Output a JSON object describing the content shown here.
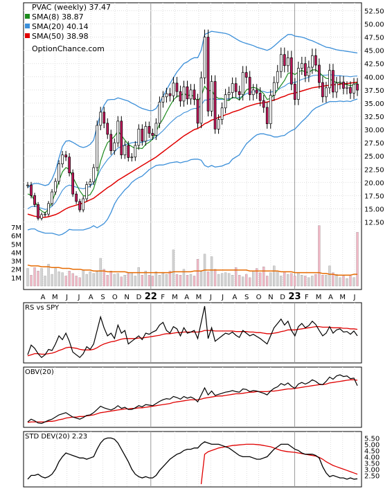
{
  "chart_data": {
    "type": "line",
    "title": "PVAC (weekly) 37.47",
    "watermark": "OptionChance.com",
    "legend_position": "top-left",
    "x_labels": [
      "A",
      "M",
      "J",
      "J",
      "A",
      "S",
      "O",
      "N",
      "D",
      "22",
      "F",
      "M",
      "A",
      "M",
      "J",
      "J",
      "A",
      "S",
      "O",
      "N",
      "D",
      "23",
      "F",
      "M",
      "A",
      "M",
      "J"
    ],
    "year_labels": [
      "22",
      "23"
    ],
    "price_panel": {
      "ylim": [
        11.0,
        54.0
      ],
      "ticks": [
        "52.50",
        "50.00",
        "47.50",
        "45.00",
        "42.50",
        "40.00",
        "37.50",
        "35.00",
        "32.50",
        "30.00",
        "27.50",
        "25.00",
        "22.50",
        "20.00",
        "17.50",
        "15.00",
        "12.50"
      ],
      "legend": [
        {
          "label": "SMA(8) 38.87",
          "color": "#1e8b1e"
        },
        {
          "label": "SMA(20) 40.14",
          "color": "#3b8fd9"
        },
        {
          "label": "SMA(50) 38.98",
          "color": "#e00000"
        }
      ],
      "close": [
        19.5,
        17.5,
        15.8,
        13.2,
        13.9,
        14.0,
        16.0,
        18.2,
        20.2,
        23.5,
        25.2,
        24.8,
        21.8,
        17.8,
        16.4,
        14.8,
        16.9,
        19.6,
        20.1,
        22.8,
        30.8,
        33.3,
        31.2,
        29.1,
        26.0,
        27.5,
        31.6,
        25.2,
        27.0,
        24.7,
        24.8,
        27.0,
        30.1,
        27.8,
        30.6,
        29.3,
        28.9,
        31.2,
        35.2,
        36.2,
        36.8,
        36.4,
        38.8,
        37.2,
        35.4,
        38.1,
        35.8,
        37.5,
        35.7,
        31.2,
        39.8,
        47.5,
        33.5,
        39.1,
        30.1,
        31.9,
        34.1,
        36.6,
        37.0,
        38.7,
        37.2,
        36.6,
        40.8,
        39.9,
        36.6,
        37.5,
        36.9,
        35.5,
        34.2,
        31.1,
        36.5,
        38.9,
        41.0,
        44.2,
        42.1,
        43.6,
        38.6,
        35.7,
        41.6,
        42.5,
        40.2,
        41.8,
        44.0,
        42.2,
        38.9,
        36.2,
        37.9,
        41.2,
        37.1,
        38.8,
        39.0,
        37.8,
        38.0,
        36.9,
        38.6,
        37.47
      ],
      "sma8": [
        17.8,
        17.6,
        16.6,
        15.2,
        14.6,
        14.2,
        15.0,
        16.3,
        18.1,
        20.3,
        22.0,
        22.8,
        22.5,
        21.0,
        19.7,
        18.4,
        17.5,
        17.4,
        17.7,
        18.8,
        21.1,
        24.0,
        26.0,
        27.5,
        28.1,
        28.7,
        29.7,
        28.9,
        28.0,
        27.2,
        26.8,
        26.4,
        26.5,
        26.4,
        27.2,
        27.6,
        28.2,
        29.6,
        31.0,
        32.0,
        33.3,
        34.5,
        35.6,
        36.3,
        36.4,
        36.9,
        36.4,
        36.6,
        36.2,
        35.3,
        36.3,
        38.2,
        37.3,
        37.5,
        36.3,
        35.9,
        35.9,
        35.6,
        35.5,
        36.1,
        36.0,
        35.6,
        36.4,
        37.5,
        37.8,
        38.0,
        37.8,
        37.4,
        36.8,
        35.7,
        35.9,
        36.6,
        37.5,
        38.4,
        39.3,
        40.6,
        40.8,
        40.4,
        40.9,
        41.2,
        40.9,
        40.8,
        41.3,
        41.3,
        40.8,
        40.2,
        39.7,
        39.6,
        39.2,
        38.9,
        38.9,
        38.6,
        38.5,
        38.3,
        38.5,
        38.87
      ],
      "sma20": [
        15.0,
        15.4,
        15.5,
        15.3,
        15.1,
        14.9,
        15.0,
        15.5,
        16.2,
        17.3,
        18.5,
        19.2,
        19.5,
        19.3,
        19.1,
        18.9,
        18.8,
        19.0,
        19.3,
        19.9,
        21.0,
        22.4,
        23.4,
        24.3,
        25.0,
        25.8,
        26.5,
        26.8,
        27.1,
        27.3,
        27.5,
        27.6,
        27.6,
        27.6,
        27.8,
        28.0,
        28.2,
        28.6,
        29.2,
        29.8,
        30.5,
        31.2,
        31.8,
        32.4,
        32.7,
        33.2,
        33.4,
        33.8,
        34.0,
        34.0,
        34.6,
        35.6,
        35.6,
        35.9,
        35.7,
        35.7,
        35.7,
        35.8,
        35.8,
        36.0,
        36.0,
        36.0,
        36.4,
        36.8,
        37.0,
        37.2,
        37.3,
        37.3,
        37.2,
        37.0,
        37.1,
        37.2,
        37.5,
        37.9,
        38.2,
        38.7,
        38.9,
        38.9,
        39.2,
        39.5,
        39.7,
        39.9,
        40.2,
        40.3,
        40.3,
        40.3,
        40.3,
        40.4,
        40.3,
        40.2,
        40.2,
        40.1,
        40.1,
        40.0,
        40.1,
        40.14
      ],
      "sma50": [
        14.0,
        13.8,
        13.6,
        13.5,
        13.4,
        13.4,
        13.5,
        13.7,
        13.9,
        14.2,
        14.6,
        15.0,
        15.3,
        15.5,
        15.7,
        15.9,
        16.1,
        16.4,
        16.7,
        17.0,
        17.5,
        18.0,
        18.5,
        19.0,
        19.4,
        19.9,
        20.4,
        20.8,
        21.2,
        21.6,
        22.0,
        22.4,
        22.8,
        23.2,
        23.6,
        24.0,
        24.4,
        24.8,
        25.3,
        25.8,
        26.3,
        26.8,
        27.3,
        27.8,
        28.3,
        28.8,
        29.2,
        29.6,
        30.0,
        30.2,
        30.6,
        31.1,
        31.4,
        31.8,
        32.0,
        32.3,
        32.5,
        32.8,
        33.0,
        33.3,
        33.5,
        33.7,
        34.0,
        34.3,
        34.5,
        34.7,
        34.9,
        35.0,
        35.1,
        35.2,
        35.4,
        35.6,
        35.8,
        36.1,
        36.3,
        36.6,
        36.8,
        36.9,
        37.1,
        37.3,
        37.5,
        37.7,
        37.9,
        38.0,
        38.1,
        38.2,
        38.3,
        38.4,
        38.5,
        38.5,
        38.6,
        38.7,
        38.7,
        38.8,
        38.9,
        38.98
      ],
      "bb_upper": [
        19.0,
        19.6,
        19.8,
        19.8,
        19.6,
        19.4,
        19.6,
        20.6,
        22.2,
        24.6,
        26.8,
        27.8,
        27.9,
        27.6,
        27.2,
        26.8,
        26.6,
        26.8,
        27.2,
        28.0,
        30.6,
        33.0,
        34.6,
        35.6,
        35.7,
        35.7,
        36.0,
        35.8,
        35.6,
        35.4,
        35.0,
        34.7,
        34.3,
        34.0,
        33.8,
        33.6,
        33.6,
        34.0,
        35.1,
        36.3,
        37.5,
        38.7,
        39.8,
        40.9,
        41.7,
        42.5,
        42.8,
        43.3,
        43.6,
        43.6,
        45.0,
        48.0,
        48.3,
        48.6,
        48.5,
        48.4,
        48.3,
        48.2,
        48.0,
        47.6,
        47.2,
        46.8,
        46.5,
        46.3,
        46.1,
        45.9,
        45.6,
        45.4,
        45.2,
        45.0,
        45.3,
        45.8,
        46.4,
        47.0,
        47.5,
        48.0,
        48.0,
        47.7,
        47.6,
        47.5,
        47.3,
        47.0,
        46.8,
        46.5,
        46.2,
        45.9,
        45.6,
        45.5,
        45.3,
        45.1,
        45.0,
        44.9,
        44.8,
        44.7,
        44.6,
        44.5
      ],
      "bb_lower": [
        11.0,
        11.2,
        11.2,
        10.8,
        10.6,
        10.4,
        10.4,
        10.4,
        10.2,
        10.0,
        10.2,
        10.6,
        11.1,
        11.0,
        11.0,
        11.0,
        11.0,
        11.2,
        11.4,
        11.8,
        11.4,
        11.8,
        12.2,
        13.0,
        14.3,
        15.9,
        17.0,
        17.8,
        18.6,
        19.2,
        20.0,
        20.5,
        20.9,
        21.2,
        21.8,
        22.4,
        22.8,
        23.2,
        23.3,
        23.3,
        23.5,
        23.7,
        23.8,
        23.9,
        23.7,
        23.9,
        24.0,
        24.3,
        24.4,
        24.4,
        24.2,
        23.2,
        22.9,
        23.2,
        22.9,
        23.0,
        23.1,
        23.4,
        23.6,
        24.4,
        24.8,
        25.2,
        26.3,
        27.3,
        27.9,
        28.5,
        29.0,
        29.2,
        29.2,
        29.0,
        28.9,
        28.6,
        28.6,
        28.8,
        28.9,
        29.4,
        29.8,
        30.1,
        30.8,
        31.5,
        32.1,
        32.8,
        33.6,
        34.1,
        34.4,
        34.7,
        35.0,
        35.3,
        35.3,
        35.3,
        35.4,
        35.3,
        35.4,
        35.3,
        35.6,
        35.78
      ]
    },
    "volume_panel": {
      "ticks": [
        "7M",
        "6M",
        "5M",
        "4M",
        "3M",
        "2M",
        "1M"
      ],
      "ylim": [
        0,
        7.5
      ],
      "values_millions": [
        2.1,
        1.3,
        2.2,
        1.8,
        2.1,
        1.2,
        2.6,
        1.4,
        2.1,
        1.7,
        1.6,
        1.2,
        1.8,
        1.5,
        1.2,
        1.0,
        1.9,
        1.4,
        1.7,
        1.5,
        1.7,
        3.3,
        2.0,
        1.3,
        1.8,
        1.4,
        1.5,
        1.1,
        1.3,
        1.5,
        1.6,
        1.2,
        2.2,
        1.3,
        1.8,
        1.3,
        1.2,
        1.7,
        1.3,
        1.5,
        1.4,
        1.8,
        4.3,
        1.4,
        1.3,
        2.0,
        1.3,
        1.4,
        1.2,
        3.2,
        1.7,
        3.8,
        1.7,
        3.5,
        2.0,
        1.4,
        1.5,
        1.6,
        1.5,
        1.3,
        2.2,
        1.3,
        1.1,
        1.4,
        1.0,
        1.8,
        2.1,
        1.6,
        2.3,
        1.2,
        1.6,
        2.4,
        1.8,
        1.2,
        1.7,
        1.4,
        1.5,
        1.2,
        1.6,
        1.3,
        1.2,
        1.0,
        1.2,
        1.4,
        7.2,
        1.3,
        1.3,
        2.4,
        1.6,
        1.4,
        1.0,
        1.2,
        0.9,
        1.2,
        1.0,
        6.4
      ],
      "avg_millions": [
        2.5,
        2.4,
        2.4,
        2.4,
        2.3,
        2.3,
        2.3,
        2.2,
        2.2,
        2.2,
        2.1,
        2.1,
        2.1,
        2.0,
        2.0,
        2.0,
        1.9,
        1.9,
        1.9,
        1.8,
        1.8,
        1.8,
        1.8,
        1.7,
        1.7,
        1.7,
        1.7,
        1.7,
        1.7,
        1.6,
        1.6,
        1.6,
        1.6,
        1.6,
        1.6,
        1.6,
        1.6,
        1.6,
        1.6,
        1.6,
        1.6,
        1.6,
        1.7,
        1.7,
        1.7,
        1.7,
        1.7,
        1.7,
        1.8,
        1.8,
        1.8,
        1.9,
        1.9,
        1.9,
        1.9,
        1.9,
        1.9,
        1.9,
        1.9,
        1.9,
        1.9,
        1.9,
        1.9,
        1.9,
        1.8,
        1.8,
        1.8,
        1.8,
        1.8,
        1.8,
        1.8,
        1.8,
        1.8,
        1.7,
        1.7,
        1.7,
        1.7,
        1.6,
        1.6,
        1.6,
        1.6,
        1.6,
        1.6,
        1.6,
        1.6,
        1.5,
        1.5,
        1.4,
        1.4,
        1.3,
        1.3,
        1.3,
        1.3,
        1.3,
        1.4,
        1.4
      ]
    },
    "rs_panel": {
      "label": "RS vs SPY",
      "line": [
        0.1,
        0.28,
        0.22,
        0.12,
        0.05,
        0.1,
        0.2,
        0.18,
        0.3,
        0.45,
        0.38,
        0.5,
        0.35,
        0.15,
        0.1,
        0.05,
        0.12,
        0.25,
        0.2,
        0.3,
        0.55,
        0.8,
        0.6,
        0.45,
        0.5,
        0.4,
        0.65,
        0.5,
        0.55,
        0.3,
        0.35,
        0.4,
        0.45,
        0.38,
        0.5,
        0.48,
        0.52,
        0.55,
        0.65,
        0.7,
        0.55,
        0.5,
        0.62,
        0.58,
        0.45,
        0.6,
        0.5,
        0.52,
        0.55,
        0.4,
        0.7,
        1.0,
        0.4,
        0.6,
        0.35,
        0.4,
        0.45,
        0.5,
        0.48,
        0.52,
        0.46,
        0.42,
        0.55,
        0.5,
        0.45,
        0.48,
        0.44,
        0.4,
        0.35,
        0.3,
        0.45,
        0.6,
        0.68,
        0.76,
        0.65,
        0.72,
        0.55,
        0.45,
        0.62,
        0.68,
        0.6,
        0.64,
        0.72,
        0.66,
        0.55,
        0.45,
        0.5,
        0.62,
        0.5,
        0.56,
        0.58,
        0.52,
        0.53,
        0.48,
        0.54,
        0.45
      ],
      "signal": [
        0.08,
        0.1,
        0.12,
        0.12,
        0.11,
        0.11,
        0.12,
        0.13,
        0.15,
        0.18,
        0.2,
        0.23,
        0.24,
        0.23,
        0.22,
        0.2,
        0.19,
        0.19,
        0.19,
        0.2,
        0.23,
        0.27,
        0.3,
        0.32,
        0.34,
        0.35,
        0.37,
        0.39,
        0.4,
        0.4,
        0.4,
        0.4,
        0.41,
        0.41,
        0.42,
        0.43,
        0.44,
        0.45,
        0.46,
        0.48,
        0.49,
        0.49,
        0.5,
        0.51,
        0.51,
        0.52,
        0.52,
        0.52,
        0.52,
        0.52,
        0.53,
        0.55,
        0.55,
        0.55,
        0.54,
        0.54,
        0.54,
        0.54,
        0.54,
        0.54,
        0.53,
        0.53,
        0.53,
        0.53,
        0.52,
        0.52,
        0.51,
        0.51,
        0.5,
        0.49,
        0.49,
        0.5,
        0.51,
        0.53,
        0.54,
        0.56,
        0.56,
        0.56,
        0.57,
        0.58,
        0.59,
        0.6,
        0.61,
        0.62,
        0.62,
        0.61,
        0.61,
        0.61,
        0.6,
        0.6,
        0.6,
        0.59,
        0.59,
        0.58,
        0.58,
        0.57
      ]
    },
    "obv_panel": {
      "label": "OBV(20)",
      "line": [
        0.05,
        0.1,
        0.07,
        0.03,
        0.02,
        0.05,
        0.08,
        0.1,
        0.14,
        0.18,
        0.2,
        0.22,
        0.18,
        0.14,
        0.12,
        0.1,
        0.13,
        0.17,
        0.18,
        0.22,
        0.28,
        0.34,
        0.31,
        0.29,
        0.27,
        0.3,
        0.35,
        0.3,
        0.32,
        0.28,
        0.28,
        0.31,
        0.35,
        0.33,
        0.37,
        0.36,
        0.35,
        0.39,
        0.43,
        0.46,
        0.48,
        0.47,
        0.52,
        0.5,
        0.47,
        0.52,
        0.49,
        0.51,
        0.48,
        0.42,
        0.55,
        0.68,
        0.55,
        0.62,
        0.54,
        0.56,
        0.58,
        0.6,
        0.61,
        0.63,
        0.61,
        0.6,
        0.66,
        0.65,
        0.61,
        0.63,
        0.62,
        0.6,
        0.58,
        0.55,
        0.62,
        0.67,
        0.7,
        0.76,
        0.73,
        0.77,
        0.71,
        0.67,
        0.75,
        0.78,
        0.75,
        0.78,
        0.83,
        0.8,
        0.75,
        0.74,
        0.8,
        0.88,
        0.84,
        0.9,
        0.92,
        0.89,
        0.9,
        0.85,
        0.86,
        0.72
      ],
      "signal": [
        0.04,
        0.05,
        0.05,
        0.05,
        0.05,
        0.05,
        0.06,
        0.06,
        0.07,
        0.09,
        0.1,
        0.12,
        0.13,
        0.14,
        0.14,
        0.15,
        0.15,
        0.16,
        0.17,
        0.18,
        0.2,
        0.22,
        0.23,
        0.24,
        0.25,
        0.26,
        0.27,
        0.28,
        0.29,
        0.29,
        0.3,
        0.3,
        0.31,
        0.31,
        0.32,
        0.33,
        0.34,
        0.35,
        0.36,
        0.37,
        0.38,
        0.39,
        0.41,
        0.42,
        0.43,
        0.44,
        0.45,
        0.46,
        0.46,
        0.46,
        0.47,
        0.49,
        0.5,
        0.51,
        0.52,
        0.53,
        0.53,
        0.54,
        0.55,
        0.56,
        0.57,
        0.57,
        0.58,
        0.59,
        0.6,
        0.6,
        0.61,
        0.61,
        0.61,
        0.61,
        0.62,
        0.62,
        0.63,
        0.64,
        0.65,
        0.66,
        0.66,
        0.67,
        0.68,
        0.69,
        0.7,
        0.71,
        0.72,
        0.73,
        0.74,
        0.74,
        0.75,
        0.77,
        0.78,
        0.79,
        0.8,
        0.81,
        0.82,
        0.83,
        0.83,
        0.82
      ]
    },
    "std_panel": {
      "label": "STD DEV(20) 2.23",
      "ticks": [
        "5.50",
        "5.00",
        "4.50",
        "4.00",
        "3.50",
        "3.00",
        "2.50"
      ],
      "ylim": [
        1.8,
        5.8
      ],
      "line": [
        2.2,
        2.5,
        2.5,
        2.6,
        2.4,
        2.3,
        2.4,
        2.6,
        3.0,
        3.6,
        4.0,
        4.3,
        4.2,
        4.1,
        4.0,
        3.9,
        3.9,
        3.8,
        3.9,
        4.0,
        4.6,
        5.1,
        5.4,
        5.5,
        5.5,
        5.4,
        5.1,
        4.6,
        4.1,
        3.6,
        3.0,
        2.6,
        2.4,
        2.3,
        2.4,
        2.3,
        2.3,
        2.5,
        2.9,
        3.2,
        3.5,
        3.8,
        4.0,
        4.2,
        4.3,
        4.5,
        4.6,
        4.6,
        4.7,
        4.7,
        5.0,
        5.2,
        5.1,
        5.0,
        5.0,
        5.0,
        4.9,
        4.8,
        4.7,
        4.5,
        4.3,
        4.1,
        4.0,
        4.0,
        4.0,
        3.9,
        3.8,
        3.8,
        3.9,
        4.0,
        4.3,
        4.6,
        4.8,
        5.0,
        5.0,
        5.0,
        4.8,
        4.6,
        4.5,
        4.3,
        4.2,
        4.2,
        4.2,
        4.1,
        3.9,
        3.2,
        2.7,
        2.4,
        2.5,
        2.4,
        2.3,
        2.3,
        2.2,
        2.3,
        2.2,
        2.23
      ],
      "signal_start_index": 50,
      "signal": [
        1.8,
        4.2,
        4.4,
        4.5,
        4.6,
        4.7,
        4.75,
        4.8,
        4.85,
        4.9,
        4.92,
        4.95,
        4.97,
        5.0,
        5.0,
        5.0,
        4.98,
        4.95,
        4.9,
        4.85,
        4.8,
        4.7,
        4.6,
        4.5,
        4.45,
        4.4,
        4.38,
        4.35,
        4.3,
        4.25,
        4.2,
        4.15,
        4.1,
        4.05,
        3.95,
        3.8,
        3.6,
        3.45,
        3.3,
        3.2,
        3.1,
        3.0,
        2.9,
        2.8,
        2.7,
        2.6
      ]
    }
  }
}
